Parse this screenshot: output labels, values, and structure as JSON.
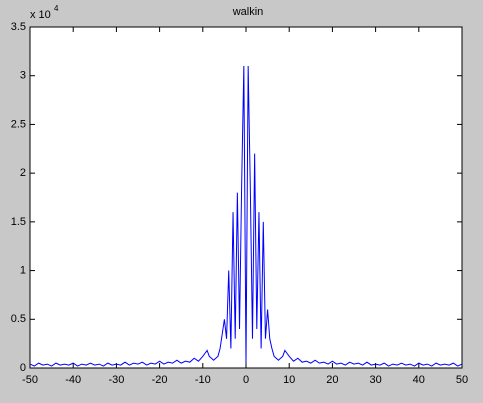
{
  "chart_data": {
    "type": "line",
    "title": "walkin",
    "y_multiplier": "x 10",
    "y_exponent": "4",
    "x": [
      -50,
      -49,
      -48,
      -47,
      -46,
      -45,
      -44,
      -43,
      -42,
      -41,
      -40,
      -39,
      -38,
      -37,
      -36,
      -35,
      -34,
      -33,
      -32,
      -31,
      -30,
      -29,
      -28,
      -27,
      -26,
      -25,
      -24,
      -23,
      -22,
      -21,
      -20,
      -19,
      -18,
      -17,
      -16,
      -15,
      -14,
      -13,
      -12,
      -11,
      -10,
      -9.5,
      -9,
      -8.5,
      -8,
      -7.5,
      -7,
      -6.5,
      -6,
      -5.5,
      -5,
      -4.5,
      -4,
      -3.5,
      -3,
      -2.5,
      -2,
      -1.5,
      -1,
      -0.5,
      0,
      0.5,
      1,
      1.5,
      2,
      2.5,
      3,
      3.5,
      4,
      4.5,
      5,
      5.5,
      6,
      6.5,
      7,
      7.5,
      8,
      8.5,
      9,
      9.5,
      10,
      11,
      12,
      13,
      14,
      15,
      16,
      17,
      18,
      19,
      20,
      21,
      22,
      23,
      24,
      25,
      26,
      27,
      28,
      29,
      30,
      31,
      32,
      33,
      34,
      35,
      36,
      37,
      38,
      39,
      40,
      41,
      42,
      43,
      44,
      45,
      46,
      47,
      48,
      49,
      50
    ],
    "series": [
      {
        "name": "walkin",
        "color": "#0000ff",
        "values": [
          0.04,
          0.02,
          0.05,
          0.03,
          0.04,
          0.02,
          0.05,
          0.03,
          0.04,
          0.03,
          0.05,
          0.02,
          0.04,
          0.03,
          0.05,
          0.03,
          0.04,
          0.02,
          0.05,
          0.03,
          0.04,
          0.03,
          0.06,
          0.03,
          0.05,
          0.04,
          0.06,
          0.03,
          0.05,
          0.04,
          0.07,
          0.04,
          0.06,
          0.05,
          0.08,
          0.05,
          0.07,
          0.06,
          0.1,
          0.07,
          0.12,
          0.15,
          0.18,
          0.12,
          0.1,
          0.08,
          0.1,
          0.12,
          0.2,
          0.35,
          0.5,
          0.3,
          1.0,
          0.2,
          1.6,
          0.3,
          1.8,
          0.4,
          1.9,
          3.1,
          0.05,
          3.1,
          1.85,
          0.3,
          2.2,
          0.4,
          1.6,
          0.2,
          1.5,
          0.3,
          0.6,
          0.3,
          0.2,
          0.12,
          0.1,
          0.08,
          0.1,
          0.12,
          0.18,
          0.15,
          0.12,
          0.07,
          0.1,
          0.06,
          0.07,
          0.05,
          0.08,
          0.05,
          0.06,
          0.04,
          0.07,
          0.04,
          0.05,
          0.03,
          0.06,
          0.04,
          0.05,
          0.03,
          0.06,
          0.03,
          0.04,
          0.03,
          0.05,
          0.02,
          0.04,
          0.03,
          0.05,
          0.03,
          0.04,
          0.02,
          0.05,
          0.03,
          0.04,
          0.02,
          0.05,
          0.03,
          0.04,
          0.03,
          0.05,
          0.02,
          0.04
        ]
      }
    ],
    "xlim": [
      -50,
      50
    ],
    "xticks": [
      -50,
      -40,
      -30,
      -20,
      -10,
      0,
      10,
      20,
      30,
      40,
      50
    ],
    "ylim": [
      0,
      3.5
    ],
    "yticks": [
      0,
      0.5,
      1,
      1.5,
      2,
      2.5,
      3,
      3.5
    ],
    "grid": false
  }
}
